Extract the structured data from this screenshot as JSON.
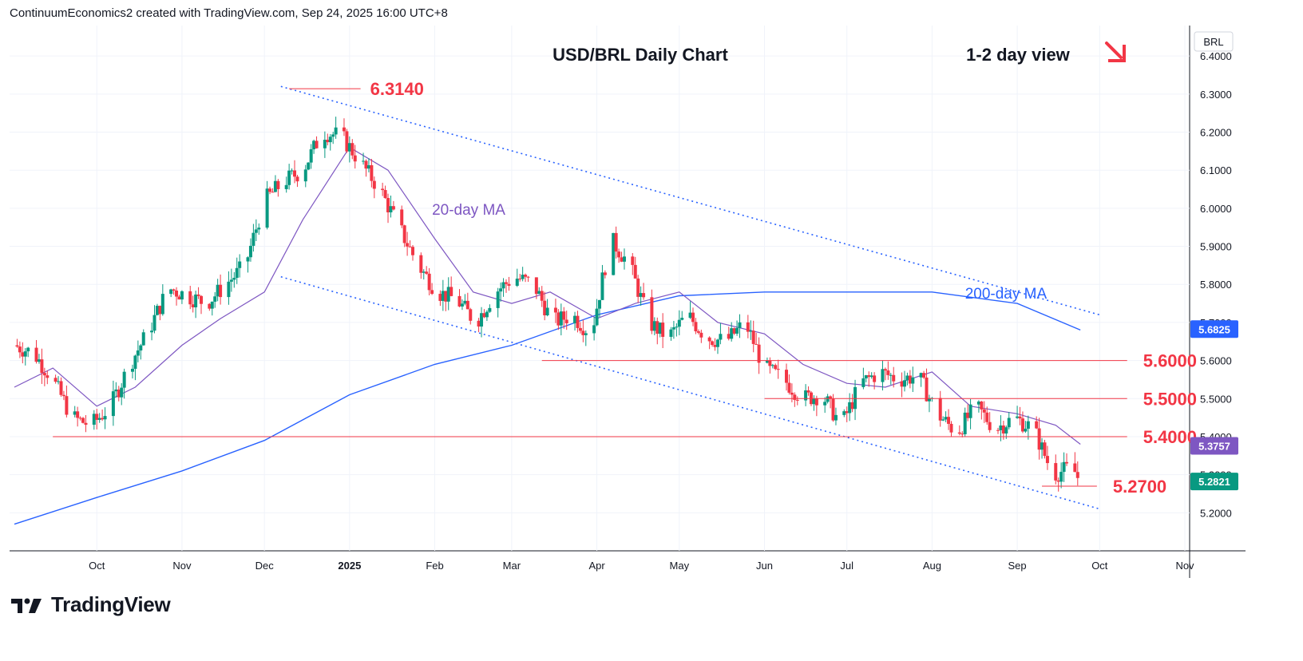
{
  "header": {
    "attribution": "ContinuumEconomics2 created with TradingView.com, Sep 24, 2025 16:00 UTC+8"
  },
  "footer": {
    "brand": "TradingView"
  },
  "chart_data": {
    "type": "candlestick",
    "title": "USD/BRL Daily Chart",
    "subtitle": "1-2 day view",
    "currency_label": "BRL",
    "ylim": [
      5.1,
      6.48
    ],
    "y_ticks": [
      "6.4000",
      "6.3000",
      "6.2000",
      "6.1000",
      "6.0000",
      "5.9000",
      "5.8000",
      "5.7000",
      "5.6000",
      "5.5000",
      "5.4000",
      "5.3000",
      "5.2000"
    ],
    "x_ticks": [
      {
        "label": "Oct",
        "date": "2024-10-01"
      },
      {
        "label": "Nov",
        "date": "2024-11-01"
      },
      {
        "label": "Dec",
        "date": "2024-12-01"
      },
      {
        "label": "2025",
        "date": "2025-01-01"
      },
      {
        "label": "Feb",
        "date": "2025-02-01"
      },
      {
        "label": "Mar",
        "date": "2025-03-01"
      },
      {
        "label": "Apr",
        "date": "2025-04-01"
      },
      {
        "label": "May",
        "date": "2025-05-01"
      },
      {
        "label": "Jun",
        "date": "2025-06-01"
      },
      {
        "label": "Jul",
        "date": "2025-07-01"
      },
      {
        "label": "Aug",
        "date": "2025-08-01"
      },
      {
        "label": "Sep",
        "date": "2025-09-01"
      },
      {
        "label": "Oct",
        "date": "2025-10-01"
      },
      {
        "label": "Nov",
        "date": "2025-11-01"
      }
    ],
    "levels": [
      {
        "label": "6.3140",
        "value": 6.314,
        "from": "2024-12-10",
        "to": "2025-01-05"
      },
      {
        "label": "5.6000",
        "value": 5.6,
        "from": "2025-03-12",
        "to": "2025-10-11"
      },
      {
        "label": "5.5000",
        "value": 5.5,
        "from": "2025-06-01",
        "to": "2025-10-11"
      },
      {
        "label": "5.4000",
        "value": 5.4,
        "from": "2024-09-15",
        "to": "2025-10-11"
      },
      {
        "label": "5.2700",
        "value": 5.27,
        "from": "2025-09-10",
        "to": "2025-09-30"
      }
    ],
    "channel": [
      {
        "name": "upper",
        "points": [
          [
            "2024-12-07",
            6.32
          ],
          [
            "2025-10-01",
            5.72
          ]
        ]
      },
      {
        "name": "lower",
        "points": [
          [
            "2024-12-07",
            5.82
          ],
          [
            "2025-10-01",
            5.21
          ]
        ]
      }
    ],
    "annotations": [
      {
        "text": "20-day MA",
        "date": "2025-01-31",
        "value": 6.0,
        "color": "#7e57c2"
      },
      {
        "text": "200-day MA",
        "date": "2025-08-13",
        "value": 5.78,
        "color": "#2962ff"
      }
    ],
    "price_labels": [
      {
        "text": "5.6825",
        "value": 5.6825,
        "color": "#2962ff"
      },
      {
        "text": "5.3757",
        "value": 5.3757,
        "color": "#7e57c2"
      },
      {
        "text": "5.2821",
        "value": 5.2821,
        "color": "#089981"
      }
    ],
    "ma200": [
      [
        "2024-09-01",
        5.17
      ],
      [
        "2024-10-01",
        5.24
      ],
      [
        "2024-11-01",
        5.31
      ],
      [
        "2024-12-01",
        5.39
      ],
      [
        "2025-01-01",
        5.51
      ],
      [
        "2025-02-01",
        5.59
      ],
      [
        "2025-03-01",
        5.64
      ],
      [
        "2025-04-01",
        5.72
      ],
      [
        "2025-05-01",
        5.77
      ],
      [
        "2025-06-01",
        5.78
      ],
      [
        "2025-07-01",
        5.78
      ],
      [
        "2025-08-01",
        5.78
      ],
      [
        "2025-09-01",
        5.75
      ],
      [
        "2025-09-24",
        5.68
      ]
    ],
    "ma20": [
      [
        "2024-09-01",
        5.53
      ],
      [
        "2024-09-15",
        5.58
      ],
      [
        "2024-10-01",
        5.48
      ],
      [
        "2024-10-15",
        5.53
      ],
      [
        "2024-11-01",
        5.64
      ],
      [
        "2024-11-15",
        5.71
      ],
      [
        "2024-12-01",
        5.78
      ],
      [
        "2024-12-15",
        5.97
      ],
      [
        "2025-01-01",
        6.16
      ],
      [
        "2025-01-15",
        6.1
      ],
      [
        "2025-02-01",
        5.92
      ],
      [
        "2025-02-15",
        5.78
      ],
      [
        "2025-03-01",
        5.75
      ],
      [
        "2025-03-15",
        5.78
      ],
      [
        "2025-04-01",
        5.71
      ],
      [
        "2025-04-15",
        5.75
      ],
      [
        "2025-05-01",
        5.78
      ],
      [
        "2025-05-15",
        5.7
      ],
      [
        "2025-06-01",
        5.67
      ],
      [
        "2025-06-15",
        5.59
      ],
      [
        "2025-07-01",
        5.54
      ],
      [
        "2025-07-15",
        5.53
      ],
      [
        "2025-08-01",
        5.57
      ],
      [
        "2025-08-15",
        5.48
      ],
      [
        "2025-09-01",
        5.46
      ],
      [
        "2025-09-15",
        5.43
      ],
      [
        "2025-09-24",
        5.38
      ]
    ],
    "close": [
      [
        "2024-09-01",
        5.64
      ],
      [
        "2024-09-08",
        5.62
      ],
      [
        "2024-09-15",
        5.55
      ],
      [
        "2024-09-22",
        5.45
      ],
      [
        "2024-09-29",
        5.43
      ],
      [
        "2024-10-06",
        5.48
      ],
      [
        "2024-10-13",
        5.59
      ],
      [
        "2024-10-20",
        5.68
      ],
      [
        "2024-10-27",
        5.79
      ],
      [
        "2024-11-03",
        5.77
      ],
      [
        "2024-11-10",
        5.75
      ],
      [
        "2024-11-17",
        5.8
      ],
      [
        "2024-11-24",
        5.85
      ],
      [
        "2024-12-01",
        6.02
      ],
      [
        "2024-12-08",
        6.07
      ],
      [
        "2024-12-15",
        6.1
      ],
      [
        "2024-12-22",
        6.2
      ],
      [
        "2024-12-29",
        6.19
      ],
      [
        "2025-01-05",
        6.12
      ],
      [
        "2025-01-12",
        6.05
      ],
      [
        "2025-01-19",
        5.95
      ],
      [
        "2025-01-26",
        5.85
      ],
      [
        "2025-02-02",
        5.78
      ],
      [
        "2025-02-09",
        5.76
      ],
      [
        "2025-02-16",
        5.7
      ],
      [
        "2025-02-23",
        5.78
      ],
      [
        "2025-03-02",
        5.82
      ],
      [
        "2025-03-09",
        5.8
      ],
      [
        "2025-03-16",
        5.7
      ],
      [
        "2025-03-23",
        5.72
      ],
      [
        "2025-03-30",
        5.67
      ],
      [
        "2025-04-06",
        5.92
      ],
      [
        "2025-04-13",
        5.85
      ],
      [
        "2025-04-20",
        5.7
      ],
      [
        "2025-04-27",
        5.66
      ],
      [
        "2025-05-04",
        5.72
      ],
      [
        "2025-05-11",
        5.66
      ],
      [
        "2025-05-18",
        5.65
      ],
      [
        "2025-05-25",
        5.7
      ],
      [
        "2025-06-01",
        5.58
      ],
      [
        "2025-06-08",
        5.55
      ],
      [
        "2025-06-15",
        5.5
      ],
      [
        "2025-06-22",
        5.51
      ],
      [
        "2025-06-29",
        5.43
      ],
      [
        "2025-07-06",
        5.54
      ],
      [
        "2025-07-13",
        5.57
      ],
      [
        "2025-07-20",
        5.55
      ],
      [
        "2025-07-27",
        5.56
      ],
      [
        "2025-08-03",
        5.46
      ],
      [
        "2025-08-10",
        5.41
      ],
      [
        "2025-08-17",
        5.48
      ],
      [
        "2025-08-24",
        5.42
      ],
      [
        "2025-08-31",
        5.45
      ],
      [
        "2025-09-07",
        5.42
      ],
      [
        "2025-09-14",
        5.3
      ],
      [
        "2025-09-21",
        5.32
      ],
      [
        "2025-09-24",
        5.28
      ]
    ]
  }
}
